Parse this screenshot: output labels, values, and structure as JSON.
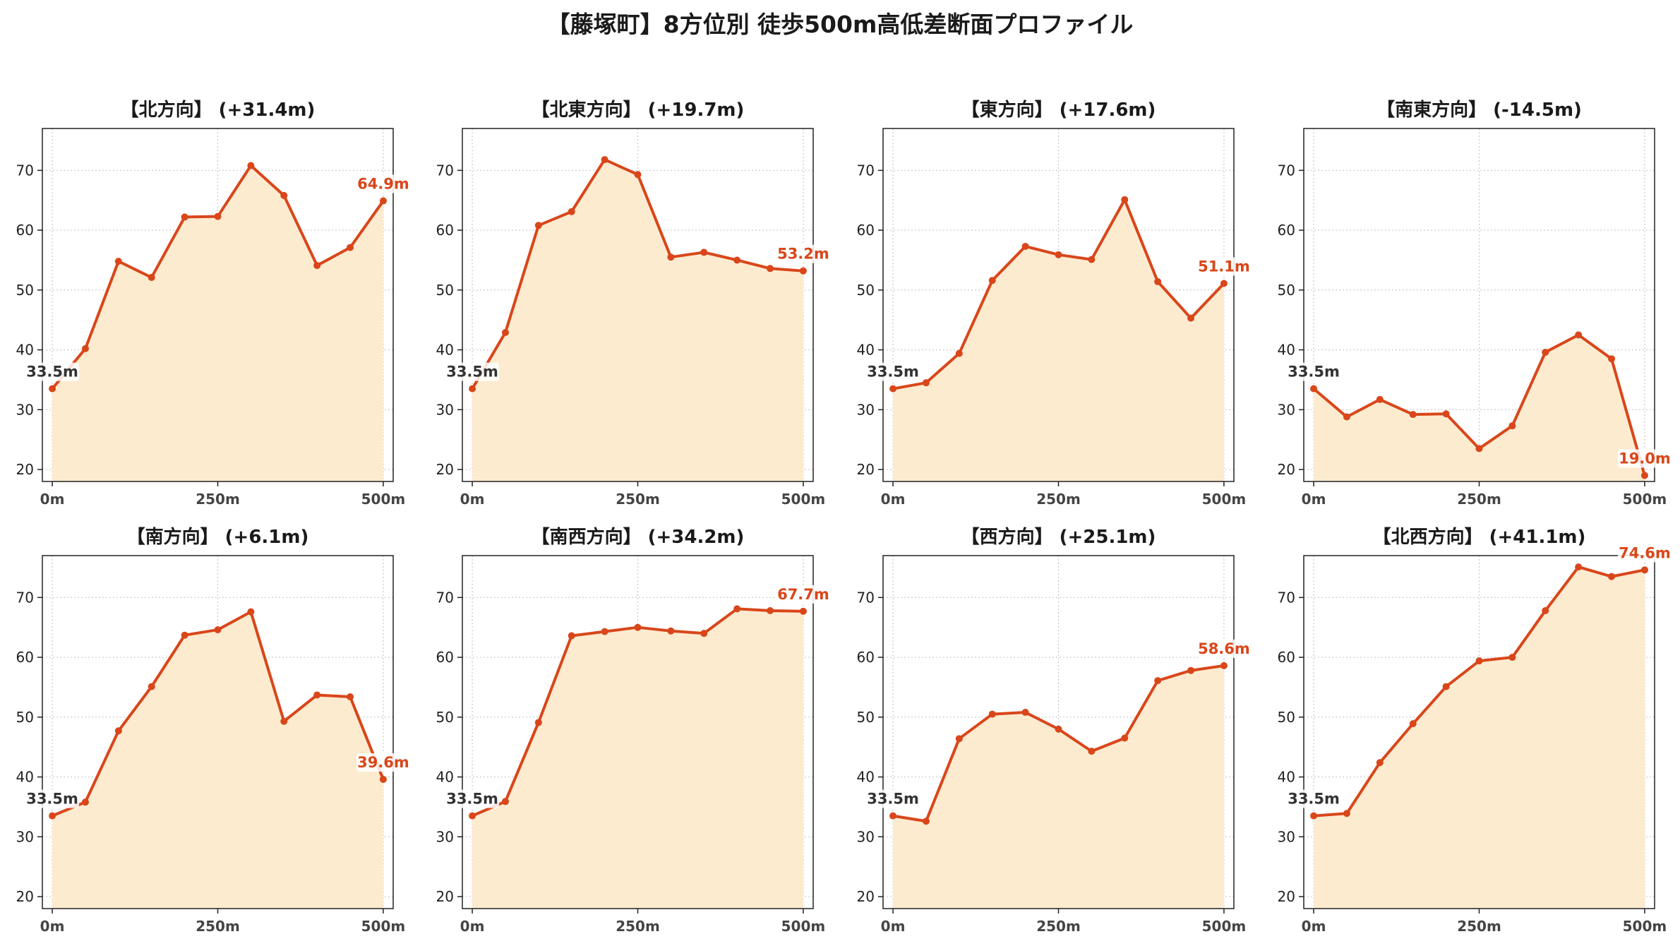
{
  "figure_title": "【藤塚町】8方位別 徒歩500m高低差断面プロファイル",
  "colors": {
    "line": "#d9461a",
    "fill": "#fdebd0",
    "start_label": "#333333",
    "end_label": "#d9461a",
    "grid": "#c8c8c8"
  },
  "chart_data": [
    {
      "type": "area",
      "title": "【北方向】 (+31.4m)",
      "x": [
        0,
        50,
        100,
        150,
        200,
        250,
        300,
        350,
        400,
        450,
        500
      ],
      "values": [
        33.5,
        40.2,
        54.8,
        52.1,
        62.2,
        62.3,
        70.8,
        65.8,
        54.1,
        57.1,
        64.9
      ],
      "start_label": "33.5m",
      "end_label": "64.9m",
      "xticks": [
        "0m",
        "250m",
        "500m"
      ],
      "yticks": [
        20,
        30,
        40,
        50,
        60,
        70
      ],
      "ylim": [
        18,
        77
      ],
      "xlim": [
        -15,
        515
      ],
      "grid": true
    },
    {
      "type": "area",
      "title": "【北東方向】 (+19.7m)",
      "x": [
        0,
        50,
        100,
        150,
        200,
        250,
        300,
        350,
        400,
        450,
        500
      ],
      "values": [
        33.5,
        42.9,
        60.8,
        63.1,
        71.8,
        69.3,
        55.5,
        56.3,
        55.0,
        53.6,
        53.2
      ],
      "start_label": "33.5m",
      "end_label": "53.2m",
      "xticks": [
        "0m",
        "250m",
        "500m"
      ],
      "yticks": [
        20,
        30,
        40,
        50,
        60,
        70
      ],
      "ylim": [
        18,
        77
      ],
      "xlim": [
        -15,
        515
      ],
      "grid": true
    },
    {
      "type": "area",
      "title": "【東方向】 (+17.6m)",
      "x": [
        0,
        50,
        100,
        150,
        200,
        250,
        300,
        350,
        400,
        450,
        500
      ],
      "values": [
        33.5,
        34.5,
        39.4,
        51.6,
        57.3,
        55.9,
        55.1,
        65.1,
        51.4,
        45.3,
        51.1
      ],
      "start_label": "33.5m",
      "end_label": "51.1m",
      "xticks": [
        "0m",
        "250m",
        "500m"
      ],
      "yticks": [
        20,
        30,
        40,
        50,
        60,
        70
      ],
      "ylim": [
        18,
        77
      ],
      "xlim": [
        -15,
        515
      ],
      "grid": true
    },
    {
      "type": "area",
      "title": "【南東方向】 (-14.5m)",
      "x": [
        0,
        50,
        100,
        150,
        200,
        250,
        300,
        350,
        400,
        450,
        500
      ],
      "values": [
        33.5,
        28.8,
        31.7,
        29.2,
        29.3,
        23.5,
        27.3,
        39.6,
        42.5,
        38.5,
        19.0
      ],
      "start_label": "33.5m",
      "end_label": "19.0m",
      "xticks": [
        "0m",
        "250m",
        "500m"
      ],
      "yticks": [
        20,
        30,
        40,
        50,
        60,
        70
      ],
      "ylim": [
        18,
        77
      ],
      "xlim": [
        -15,
        515
      ],
      "grid": true
    },
    {
      "type": "area",
      "title": "【南方向】 (+6.1m)",
      "x": [
        0,
        50,
        100,
        150,
        200,
        250,
        300,
        350,
        400,
        450,
        500
      ],
      "values": [
        33.5,
        35.8,
        47.7,
        55.1,
        63.7,
        64.6,
        67.6,
        49.3,
        53.7,
        53.4,
        39.6
      ],
      "start_label": "33.5m",
      "end_label": "39.6m",
      "xticks": [
        "0m",
        "250m",
        "500m"
      ],
      "yticks": [
        20,
        30,
        40,
        50,
        60,
        70
      ],
      "ylim": [
        18,
        77
      ],
      "xlim": [
        -15,
        515
      ],
      "grid": true
    },
    {
      "type": "area",
      "title": "【南西方向】 (+34.2m)",
      "x": [
        0,
        50,
        100,
        150,
        200,
        250,
        300,
        350,
        400,
        450,
        500
      ],
      "values": [
        33.5,
        35.9,
        49.1,
        63.6,
        64.3,
        65.0,
        64.4,
        64.0,
        68.1,
        67.8,
        67.7
      ],
      "start_label": "33.5m",
      "end_label": "67.7m",
      "xticks": [
        "0m",
        "250m",
        "500m"
      ],
      "yticks": [
        20,
        30,
        40,
        50,
        60,
        70
      ],
      "ylim": [
        18,
        77
      ],
      "xlim": [
        -15,
        515
      ],
      "grid": true
    },
    {
      "type": "area",
      "title": "【西方向】 (+25.1m)",
      "x": [
        0,
        50,
        100,
        150,
        200,
        250,
        300,
        350,
        400,
        450,
        500
      ],
      "values": [
        33.5,
        32.6,
        46.4,
        50.5,
        50.8,
        48.0,
        44.3,
        46.5,
        56.1,
        57.8,
        58.6
      ],
      "start_label": "33.5m",
      "end_label": "58.6m",
      "xticks": [
        "0m",
        "250m",
        "500m"
      ],
      "yticks": [
        20,
        30,
        40,
        50,
        60,
        70
      ],
      "ylim": [
        18,
        77
      ],
      "xlim": [
        -15,
        515
      ],
      "grid": true
    },
    {
      "type": "area",
      "title": "【北西方向】 (+41.1m)",
      "x": [
        0,
        50,
        100,
        150,
        200,
        250,
        300,
        350,
        400,
        450,
        500
      ],
      "values": [
        33.5,
        33.9,
        42.4,
        48.9,
        55.1,
        59.4,
        60.0,
        67.8,
        75.1,
        73.5,
        74.6
      ],
      "start_label": "33.5m",
      "end_label": "74.6m",
      "xticks": [
        "0m",
        "250m",
        "500m"
      ],
      "yticks": [
        20,
        30,
        40,
        50,
        60,
        70
      ],
      "ylim": [
        18,
        77
      ],
      "xlim": [
        -15,
        515
      ],
      "grid": true
    }
  ]
}
